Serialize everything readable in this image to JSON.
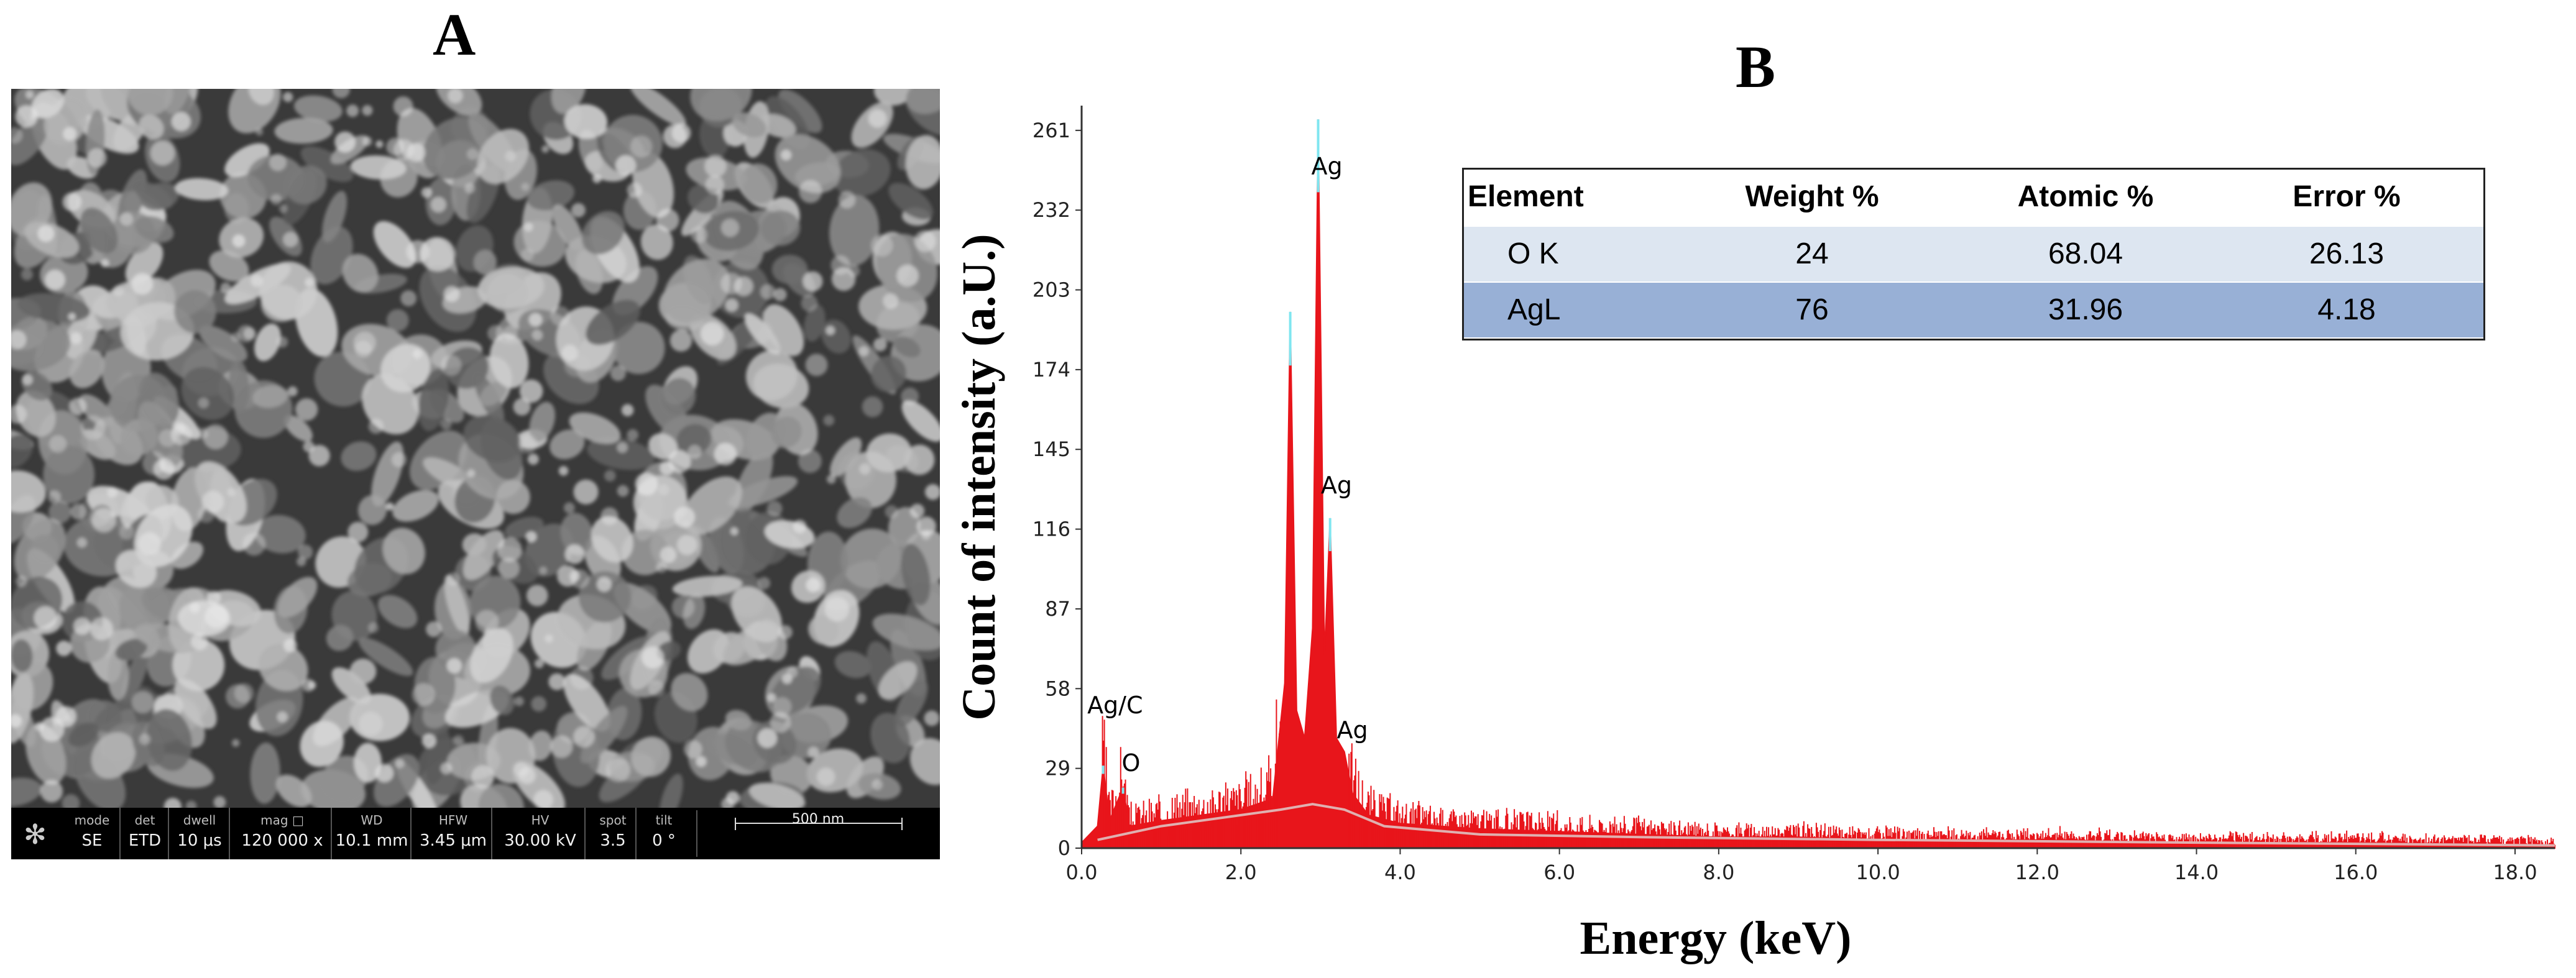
{
  "panels": {
    "a_label": "A",
    "b_label": "B"
  },
  "sem": {
    "info_headers": [
      "mode",
      "det",
      "dwell",
      "mag □",
      "WD",
      "HFW",
      "HV",
      "spot",
      "tilt"
    ],
    "info_values": [
      "SE",
      "ETD",
      "10 μs",
      "120 000 x",
      "10.1 mm",
      "3.45 μm",
      "30.00 kV",
      "3.5",
      "0 °"
    ],
    "scale_bar_label": "500 nm",
    "logo_icon": "fei-logo-icon"
  },
  "edx_table": {
    "headers": [
      "Element",
      "Weight %",
      "Atomic %",
      "Error %"
    ],
    "rows": [
      {
        "element": "O K",
        "weight": "24",
        "atomic": "68.04",
        "error": "26.13"
      },
      {
        "element": "AgL",
        "weight": "76",
        "atomic": "31.96",
        "error": "4.18"
      }
    ],
    "colors": {
      "row1": "#dde6f1",
      "row2": "#98b0d6"
    }
  },
  "chart_data": {
    "type": "area",
    "title": "",
    "xlabel": "Energy (keV)",
    "ylabel": "Count of intensity (a.U.)",
    "xlim": [
      0,
      18.5
    ],
    "ylim": [
      0,
      270
    ],
    "x_ticks": [
      "0.0",
      "2.0",
      "4.0",
      "6.0",
      "8.0",
      "10.0",
      "12.0",
      "14.0",
      "16.0",
      "18.0"
    ],
    "y_ticks": [
      "0",
      "29",
      "58",
      "87",
      "116",
      "145",
      "174",
      "203",
      "232",
      "261"
    ],
    "series": [
      {
        "points": [
          [
            0.0,
            2
          ],
          [
            0.2,
            8
          ],
          [
            0.27,
            30
          ],
          [
            0.35,
            10
          ],
          [
            0.52,
            22
          ],
          [
            0.6,
            8
          ],
          [
            1.0,
            10
          ],
          [
            1.5,
            12
          ],
          [
            2.0,
            14
          ],
          [
            2.4,
            18
          ],
          [
            2.55,
            60
          ],
          [
            2.62,
            195
          ],
          [
            2.7,
            50
          ],
          [
            2.8,
            40
          ],
          [
            2.9,
            80
          ],
          [
            2.97,
            265
          ],
          [
            3.05,
            70
          ],
          [
            3.12,
            120
          ],
          [
            3.2,
            40
          ],
          [
            3.3,
            35
          ],
          [
            3.4,
            20
          ],
          [
            3.6,
            12
          ],
          [
            4.0,
            9
          ],
          [
            5.0,
            7
          ],
          [
            6.0,
            6
          ],
          [
            7.0,
            5
          ],
          [
            8.0,
            4
          ],
          [
            9.0,
            4
          ],
          [
            10.0,
            3
          ],
          [
            12.0,
            3
          ],
          [
            14.0,
            2
          ],
          [
            16.0,
            2
          ],
          [
            18.5,
            1
          ]
        ]
      },
      {
        "points": [
          [
            0.2,
            3
          ],
          [
            1.0,
            8
          ],
          [
            2.0,
            12
          ],
          [
            2.5,
            14
          ],
          [
            2.9,
            16
          ],
          [
            3.3,
            14
          ],
          [
            3.8,
            8
          ],
          [
            5.0,
            5
          ],
          [
            7.0,
            4
          ],
          [
            10.0,
            3
          ],
          [
            14.0,
            2
          ],
          [
            18.5,
            1
          ]
        ]
      }
    ],
    "annotations": [
      {
        "text": "Ag",
        "x": 3.08,
        "y": 245
      },
      {
        "text": "Ag",
        "x": 3.2,
        "y": 129
      },
      {
        "text": "Ag",
        "x": 3.4,
        "y": 40
      },
      {
        "text": "Ag/C",
        "x": 0.42,
        "y": 49
      },
      {
        "text": "O",
        "x": 0.62,
        "y": 28
      }
    ],
    "colors": {
      "fill": "#e8151b",
      "baseline": "#e0b0b0",
      "peak_tip": "#7fe6f0"
    },
    "grid": false
  }
}
